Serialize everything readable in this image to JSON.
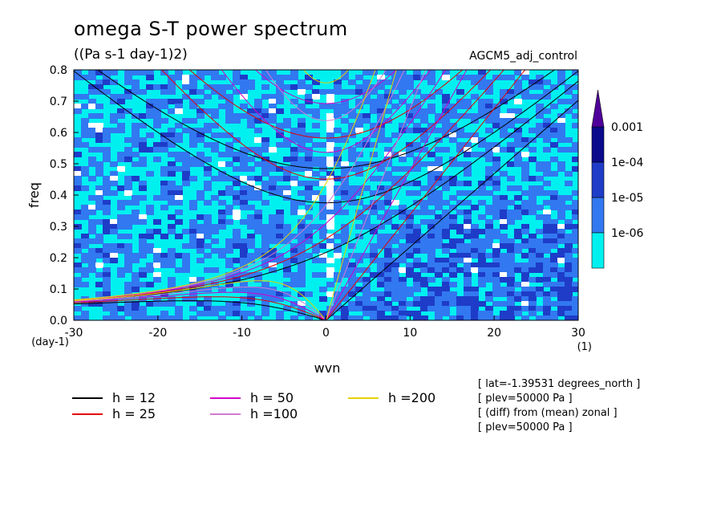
{
  "header": {
    "title": "omega S-T power spectrum",
    "units": "((Pa s-1 day-1)2)",
    "run_name": "AGCM5_adj_control"
  },
  "info_lines": [
    "[ lat=-1.39531 degrees_north ]",
    "[ plev=50000 Pa ]",
    "[ (diff) from (mean) zonal ]",
    "[ plev=50000 Pa ]"
  ],
  "chart_data": {
    "type": "heatmap",
    "title": "omega S-T power spectrum",
    "xlabel": "wvn",
    "ylabel": "freq",
    "x_unit_label": "(1)",
    "y_unit_label": "(day-1)",
    "xlim": [
      -30,
      30
    ],
    "ylim": [
      0,
      0.8
    ],
    "x_ticks": [
      -30,
      -20,
      -10,
      0,
      10,
      20,
      30
    ],
    "x_tick_labels": [
      "-30",
      "-20",
      "-10",
      "0",
      "10",
      "20",
      "30"
    ],
    "y_ticks": [
      0,
      0.1,
      0.2,
      0.3,
      0.4,
      0.5,
      0.6,
      0.7,
      0.8
    ],
    "y_tick_labels": [
      "0.0",
      "0.1",
      "0.2",
      "0.3",
      "0.4",
      "0.5",
      "0.6",
      "0.7",
      "0.8"
    ],
    "colorbar": {
      "levels": [
        "1e-06",
        "1e-05",
        "1e-04",
        "0.001"
      ],
      "colors": [
        "#00f0f0",
        "#3278f0",
        "#1e3cc8",
        "#0a0a8c",
        "#50009a"
      ]
    },
    "dispersion_curves": [
      {
        "label": "h = 12",
        "h": 12,
        "color": "#000000"
      },
      {
        "label": "h = 25",
        "h": 25,
        "color": "#e60000"
      },
      {
        "label": "h = 50",
        "h": 50,
        "color": "#d200c8"
      },
      {
        "label": "h =100",
        "h": 100,
        "color": "#d27ad2"
      },
      {
        "label": "h =200",
        "h": 200,
        "color": "#e6d200"
      }
    ]
  }
}
